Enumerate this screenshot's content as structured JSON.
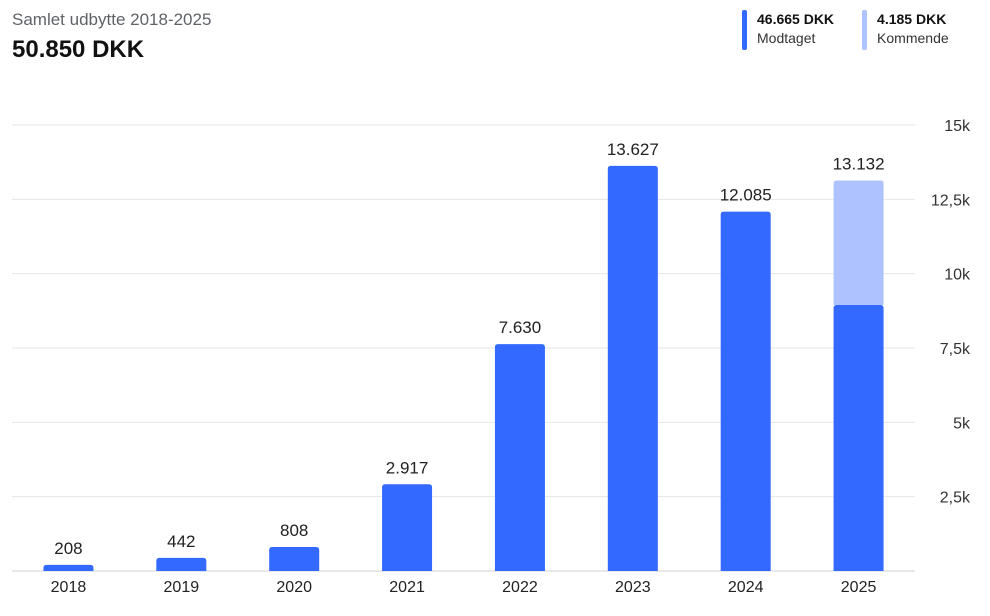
{
  "header": {
    "subtitle": "Samlet udbytte 2018-2025",
    "total": "50.850 DKK"
  },
  "legend": [
    {
      "amount": "46.665 DKK",
      "label": "Modtaget",
      "color": "#3369ff"
    },
    {
      "amount": "4.185 DKK",
      "label": "Kommende",
      "color": "#adc2ff"
    }
  ],
  "chart_data": {
    "type": "bar",
    "stacked": true,
    "categories": [
      "2018",
      "2019",
      "2020",
      "2021",
      "2022",
      "2023",
      "2024",
      "2025"
    ],
    "series": [
      {
        "name": "Modtaget",
        "color": "#3369ff",
        "values": [
          208,
          442,
          808,
          2917,
          7630,
          13627,
          12085,
          8947
        ]
      },
      {
        "name": "Kommende",
        "color": "#adc2ff",
        "values": [
          0,
          0,
          0,
          0,
          0,
          0,
          0,
          4185
        ]
      }
    ],
    "totals": [
      208,
      442,
      808,
      2917,
      7630,
      13627,
      12085,
      13132
    ],
    "data_labels": [
      "208",
      "442",
      "808",
      "2.917",
      "7.630",
      "13.627",
      "12.085",
      "13.132"
    ],
    "ylim": [
      0,
      15000
    ],
    "yticks": [
      2500,
      5000,
      7500,
      10000,
      12500,
      15000
    ],
    "ytick_labels": [
      "2,5k",
      "5k",
      "7,5k",
      "10k",
      "12,5k",
      "15k"
    ],
    "y_axis_position": "right",
    "grid": true
  }
}
